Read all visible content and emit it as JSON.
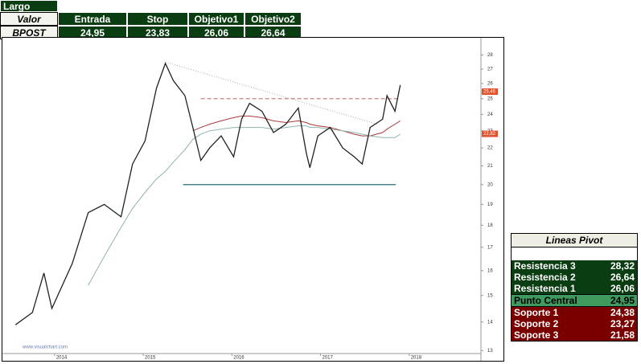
{
  "top_table": {
    "title": "Largo",
    "header": [
      "Valor",
      "Entrada",
      "Stop",
      "Objetivo1",
      "Objetivo2"
    ],
    "row": [
      "BPOST",
      "24,95",
      "23,83",
      "26,06",
      "26,64"
    ]
  },
  "pivot_table": {
    "title": "Lineas Pivot",
    "rows": [
      [
        "Resistencia 3",
        "28,32"
      ],
      [
        "Resistencia 2",
        "26,64"
      ],
      [
        "Resistencia 1",
        "26,06"
      ],
      [
        "Punto Central",
        "24,95"
      ],
      [
        "Soporte 1",
        "24,38"
      ],
      [
        "Soporte 2",
        "23,27"
      ],
      [
        "Soporte 3",
        "21,58"
      ]
    ]
  },
  "chart_data": {
    "type": "line",
    "watermark": "www.visualchart.com",
    "yscale": "log",
    "xlim": [
      2013.43,
      2018.81
    ],
    "xticks": [
      2014,
      2015,
      2016,
      2017,
      2018
    ],
    "ylim": [
      12.9,
      29.1
    ],
    "yticks": [
      13,
      14,
      15,
      16,
      17,
      18,
      19,
      20,
      21,
      22,
      23,
      24,
      25,
      26,
      27,
      28
    ],
    "x": [
      2013.56,
      2013.75,
      2013.88,
      2013.97,
      2014.2,
      2014.38,
      2014.56,
      2014.75,
      2014.88,
      2015.02,
      2015.15,
      2015.25,
      2015.34,
      2015.47,
      2015.56,
      2015.65,
      2015.75,
      2015.88,
      2016.02,
      2016.11,
      2016.2,
      2016.34,
      2016.47,
      2016.61,
      2016.75,
      2016.84,
      2016.88,
      2016.97,
      2017.11,
      2017.25,
      2017.38,
      2017.47,
      2017.56,
      2017.7,
      2017.75,
      2017.84,
      2017.9
    ],
    "series": [
      {
        "color": "#222222",
        "values": [
          13.9,
          14.35,
          15.9,
          14.5,
          16.3,
          18.6,
          19.0,
          18.4,
          21.1,
          22.4,
          25.7,
          27.4,
          26.2,
          25.2,
          23.2,
          21.3,
          22.0,
          22.7,
          21.5,
          23.7,
          24.7,
          24.2,
          22.9,
          23.4,
          24.4,
          21.7,
          20.9,
          22.7,
          23.2,
          22.0,
          21.5,
          21.1,
          23.2,
          23.7,
          25.2,
          24.2,
          25.9
        ]
      },
      {
        "color": "#8fb3b0",
        "values": [
          null,
          null,
          null,
          null,
          null,
          15.4,
          16.6,
          17.9,
          18.8,
          19.6,
          20.3,
          20.7,
          21.2,
          21.9,
          22.5,
          22.8,
          23.0,
          23.1,
          23.2,
          23.2,
          23.2,
          23.2,
          23.1,
          23.2,
          23.3,
          23.3,
          23.2,
          23.2,
          23.1,
          23.0,
          22.9,
          22.8,
          22.7,
          22.6,
          22.6,
          22.6,
          22.8
        ]
      },
      {
        "color": "#a83a3a",
        "values": [
          null,
          null,
          null,
          null,
          null,
          null,
          null,
          null,
          null,
          null,
          null,
          null,
          null,
          null,
          23.0,
          23.2,
          23.4,
          23.6,
          23.8,
          23.9,
          23.9,
          23.8,
          23.6,
          23.5,
          23.6,
          23.5,
          23.4,
          23.3,
          23.2,
          23.0,
          22.8,
          22.7,
          22.7,
          22.9,
          23.1,
          23.4,
          23.6
        ]
      }
    ],
    "levels": [
      {
        "value": 25.0,
        "x": [
          2015.65,
          2017.9
        ],
        "color": "#c07070",
        "style": "dashed"
      },
      {
        "value": 20.0,
        "x": [
          2015.45,
          2017.85
        ],
        "color": "#2a6a7a",
        "style": "solid"
      }
    ],
    "trendline": {
      "x": [
        2015.25,
        2017.64
      ],
      "values": [
        27.5,
        23.4
      ],
      "color": "#aaaaaa"
    },
    "price_tags": [
      {
        "value": 25.46,
        "label": "25,46",
        "color": "#e0502a"
      },
      {
        "value": 22.82,
        "label": "22,82",
        "color": "#e0502a"
      }
    ]
  }
}
